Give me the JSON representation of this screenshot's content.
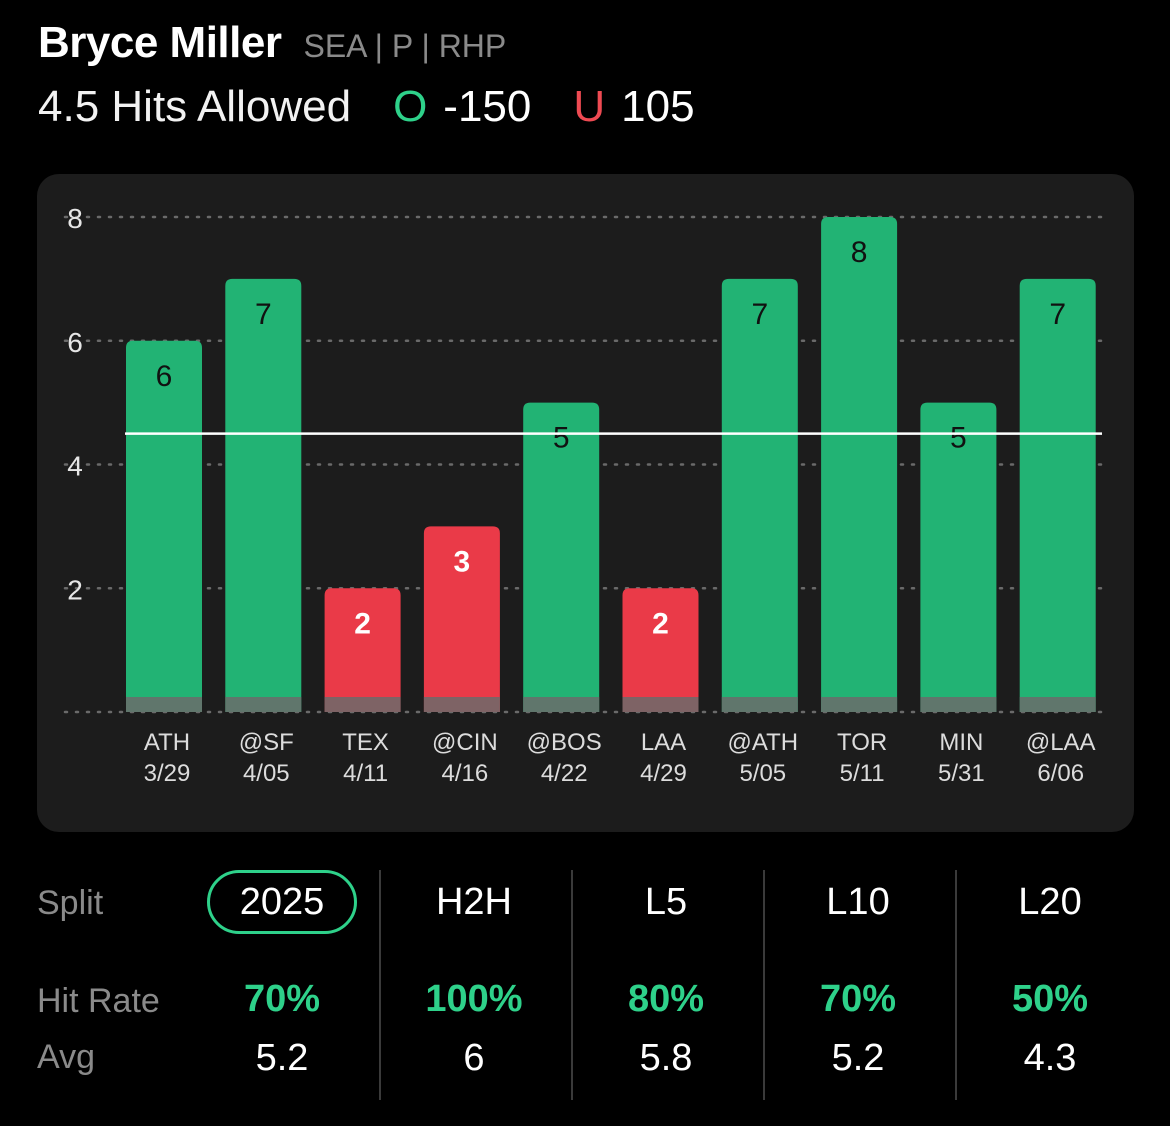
{
  "player": {
    "name": "Bryce Miller",
    "meta": "SEA | P | RHP"
  },
  "market": {
    "prop": "4.5 Hits Allowed",
    "over_symbol": "O",
    "over_odds": "-150",
    "under_symbol": "U",
    "under_odds": "105"
  },
  "colors": {
    "over": "#2ed18a",
    "bar_hit": "#22b374",
    "bar_miss": "#ea3a48",
    "card": "#1c1c1c"
  },
  "chart_data": {
    "type": "bar",
    "categories": [
      "ATH",
      "@SF",
      "TEX",
      "@CIN",
      "@BOS",
      "LAA",
      "@ATH",
      "TOR",
      "MIN",
      "@LAA"
    ],
    "dates": [
      "3/29",
      "4/05",
      "4/11",
      "4/16",
      "4/22",
      "4/29",
      "5/05",
      "5/11",
      "5/31",
      "6/06"
    ],
    "values": [
      6,
      7,
      2,
      3,
      5,
      2,
      7,
      8,
      5,
      7
    ],
    "threshold": 4.5,
    "yticks": [
      "2",
      "4",
      "6",
      "8"
    ],
    "ylim": [
      0,
      8
    ],
    "grid": true,
    "title": "",
    "xlabel": "",
    "ylabel": ""
  },
  "splits": {
    "row_labels": {
      "split": "Split",
      "hit_rate": "Hit Rate",
      "avg": "Avg"
    },
    "columns": [
      {
        "label": "2025",
        "hit_rate": "70%",
        "avg": "5.2",
        "active": true
      },
      {
        "label": "H2H",
        "hit_rate": "100%",
        "avg": "6",
        "active": false
      },
      {
        "label": "L5",
        "hit_rate": "80%",
        "avg": "5.8",
        "active": false
      },
      {
        "label": "L10",
        "hit_rate": "70%",
        "avg": "5.2",
        "active": false
      },
      {
        "label": "L20",
        "hit_rate": "50%",
        "avg": "4.3",
        "active": false
      }
    ]
  }
}
